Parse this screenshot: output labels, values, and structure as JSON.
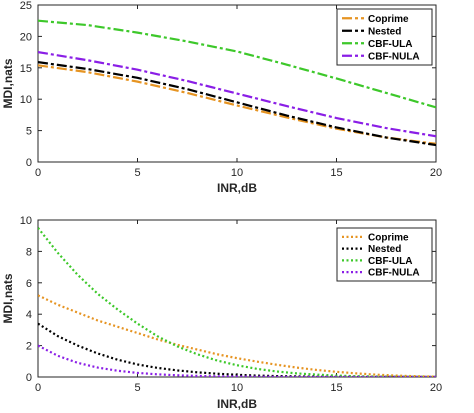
{
  "chart_data": [
    {
      "type": "line",
      "line_style": "dash-dot",
      "xlabel": "INR,dB",
      "ylabel": "MDI,nats",
      "xlim": [
        0,
        20
      ],
      "ylim": [
        0,
        25
      ],
      "xticks": [
        0,
        5,
        10,
        15,
        20
      ],
      "yticks": [
        0,
        5,
        10,
        15,
        20,
        25
      ],
      "grid": false,
      "legend_position": "top-right",
      "x": [
        0,
        2.5,
        5,
        7.5,
        10,
        12.5,
        15,
        17.5,
        20
      ],
      "series": [
        {
          "name": "Coprime",
          "color": "#e69422",
          "values": [
            15.4,
            14.3,
            12.8,
            11.0,
            9.0,
            7.1,
            5.3,
            3.9,
            2.9
          ]
        },
        {
          "name": "Nested",
          "color": "#000000",
          "values": [
            15.9,
            14.8,
            13.4,
            11.6,
            9.5,
            7.4,
            5.5,
            3.9,
            2.7
          ]
        },
        {
          "name": "CBF-ULA",
          "color": "#3dc82a",
          "values": [
            22.5,
            21.8,
            20.6,
            19.2,
            17.6,
            15.5,
            13.3,
            11.0,
            8.7
          ]
        },
        {
          "name": "CBF-NULA",
          "color": "#8a1ee6",
          "values": [
            17.5,
            16.2,
            14.7,
            12.9,
            10.9,
            8.9,
            7.0,
            5.4,
            4.1
          ]
        }
      ]
    },
    {
      "type": "line",
      "line_style": "dotted",
      "xlabel": "INR,dB",
      "ylabel": "MDI,nats",
      "xlim": [
        0,
        20
      ],
      "ylim": [
        0,
        10
      ],
      "xticks": [
        0,
        5,
        10,
        15,
        20
      ],
      "yticks": [
        0,
        2,
        4,
        6,
        8,
        10
      ],
      "grid": false,
      "legend_position": "top-right",
      "x": [
        0,
        1,
        2,
        3,
        4,
        5,
        6,
        7,
        8,
        9,
        10,
        11,
        12,
        13,
        14,
        15,
        16,
        17,
        18,
        19,
        20
      ],
      "series": [
        {
          "name": "Coprime",
          "color": "#e69422",
          "values": [
            5.2,
            4.6,
            4.1,
            3.6,
            3.2,
            2.8,
            2.4,
            2.05,
            1.75,
            1.45,
            1.2,
            0.98,
            0.78,
            0.6,
            0.45,
            0.33,
            0.23,
            0.15,
            0.09,
            0.05,
            0.02
          ]
        },
        {
          "name": "Nested",
          "color": "#000000",
          "values": [
            3.4,
            2.6,
            2.0,
            1.5,
            1.1,
            0.8,
            0.58,
            0.42,
            0.3,
            0.21,
            0.14,
            0.09,
            0.06,
            0.04,
            0.02,
            0.01,
            0.01,
            0.0,
            0.0,
            0.0,
            0.0
          ]
        },
        {
          "name": "CBF-ULA",
          "color": "#3dc82a",
          "values": [
            9.5,
            7.9,
            6.5,
            5.3,
            4.3,
            3.4,
            2.6,
            1.95,
            1.45,
            1.05,
            0.75,
            0.52,
            0.35,
            0.23,
            0.15,
            0.09,
            0.05,
            0.03,
            0.02,
            0.01,
            0.0
          ]
        },
        {
          "name": "CBF-NULA",
          "color": "#8a1ee6",
          "values": [
            2.0,
            1.35,
            0.9,
            0.6,
            0.4,
            0.26,
            0.17,
            0.11,
            0.07,
            0.04,
            0.03,
            0.02,
            0.01,
            0.0,
            0.0,
            0.0,
            0.0,
            0.0,
            0.0,
            0.0,
            0.0
          ]
        }
      ]
    }
  ]
}
